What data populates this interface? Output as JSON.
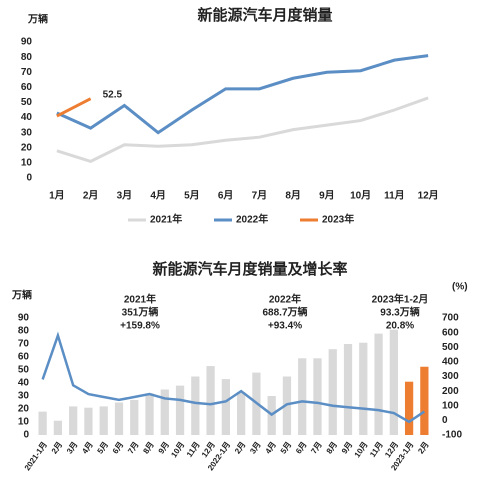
{
  "chart_data": [
    {
      "type": "line",
      "title": "新能源汽车月度销量",
      "y_label": "万辆",
      "categories": [
        "1月",
        "2月",
        "3月",
        "4月",
        "5月",
        "6月",
        "7月",
        "8月",
        "9月",
        "10月",
        "11月",
        "12月"
      ],
      "ylim": [
        0,
        90
      ],
      "yticks": [
        0,
        10,
        20,
        30,
        40,
        50,
        60,
        70,
        80,
        90
      ],
      "grid": false,
      "series": [
        {
          "name": "2021年",
          "color": "#d9d9d9",
          "values": [
            18,
            11,
            22,
            21,
            22,
            25,
            27,
            32,
            35,
            38,
            45,
            53
          ]
        },
        {
          "name": "2022年",
          "color": "#5b8ec4",
          "values": [
            43,
            33,
            48,
            30,
            45,
            59,
            59,
            66,
            70,
            71,
            78,
            81
          ]
        },
        {
          "name": "2023年",
          "color": "#ed7d31",
          "values": [
            41,
            52.5,
            null,
            null,
            null,
            null,
            null,
            null,
            null,
            null,
            null,
            null
          ],
          "value_labels": [
            null,
            "52.5",
            null,
            null,
            null,
            null,
            null,
            null,
            null,
            null,
            null,
            null
          ]
        }
      ]
    },
    {
      "type": "bar_line",
      "title": "新能源汽车月度销量及增长率",
      "y_label": "万辆",
      "y2_label": "(%)",
      "categories": [
        "2021-1月",
        "2月",
        "3月",
        "4月",
        "5月",
        "6月",
        "7月",
        "8月",
        "9月",
        "10月",
        "11月",
        "12月",
        "2022-1月",
        "2月",
        "3月",
        "4月",
        "5月",
        "6月",
        "7月",
        "8月",
        "9月",
        "10月",
        "11月",
        "12月",
        "2023-1月",
        "2月"
      ],
      "ylim": [
        0,
        90
      ],
      "yticks": [
        0,
        10,
        20,
        30,
        40,
        50,
        60,
        70,
        80,
        90
      ],
      "y2lim": [
        -100,
        700
      ],
      "y2ticks": [
        -100,
        0,
        100,
        200,
        300,
        400,
        500,
        600,
        700
      ],
      "bars": {
        "values": [
          18,
          11,
          22,
          21,
          22,
          25,
          27,
          32,
          35,
          38,
          45,
          53,
          43,
          33,
          48,
          30,
          45,
          59,
          59,
          66,
          70,
          71,
          78,
          81,
          41,
          52.5
        ],
        "colors": [
          "#d9d9d9",
          "#d9d9d9",
          "#d9d9d9",
          "#d9d9d9",
          "#d9d9d9",
          "#d9d9d9",
          "#d9d9d9",
          "#d9d9d9",
          "#d9d9d9",
          "#d9d9d9",
          "#d9d9d9",
          "#d9d9d9",
          "#d9d9d9",
          "#d9d9d9",
          "#d9d9d9",
          "#d9d9d9",
          "#d9d9d9",
          "#d9d9d9",
          "#d9d9d9",
          "#d9d9d9",
          "#d9d9d9",
          "#d9d9d9",
          "#d9d9d9",
          "#d9d9d9",
          "#ed7d31",
          "#ed7d31"
        ]
      },
      "line": {
        "axis": "y2",
        "color": "#5b8ec4",
        "values": [
          280,
          580,
          240,
          180,
          160,
          140,
          160,
          180,
          150,
          140,
          120,
          110,
          130,
          200,
          120,
          40,
          110,
          130,
          120,
          100,
          90,
          80,
          70,
          50,
          -10,
          60
        ]
      },
      "annotations": [
        [
          "2021年",
          "351万辆",
          "+159.8%"
        ],
        [
          "2022年",
          "688.7万辆",
          "+93.4%"
        ],
        [
          "2023年1-2月",
          "93.3万辆",
          "20.8%"
        ]
      ]
    }
  ]
}
